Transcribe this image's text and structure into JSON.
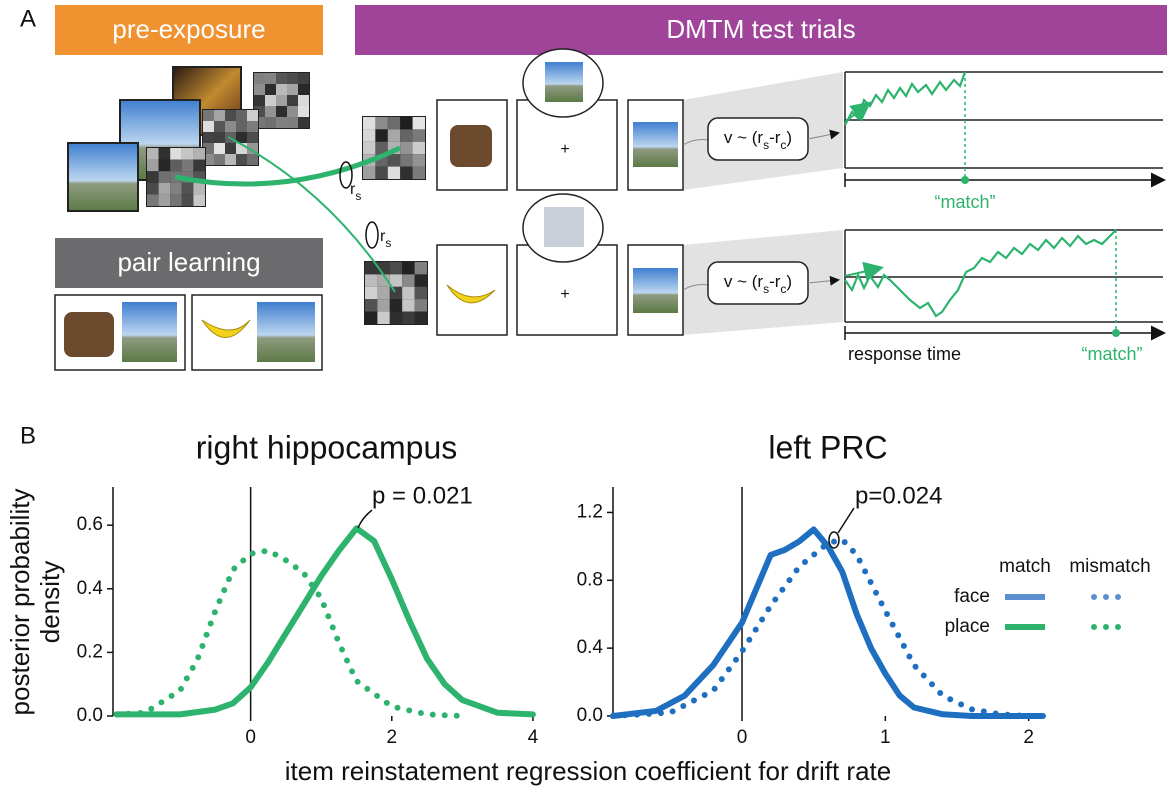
{
  "panel_a": {
    "label": "A",
    "pre_exposure": "pre-exposure",
    "test_trials": "DMTM test trials",
    "pair_learning": "pair learning",
    "similarity_label": {
      "base": "r",
      "sub": "s"
    },
    "drift": [
      "v ~ (r",
      "s",
      "-r",
      "c",
      ")"
    ],
    "response": "“match”",
    "response_time": "response time"
  },
  "panel_b": {
    "label": "B",
    "xlabel": "item reinstatement regression coefficient for drift rate",
    "ylabel": [
      "posterior probability",
      "density"
    ]
  },
  "chart_data": [
    {
      "type": "line",
      "title": "right hippocampus",
      "xlim": [
        -1.95,
        4.1
      ],
      "ylim": [
        0,
        0.72
      ],
      "xticks": [
        0,
        2,
        4
      ],
      "yticks": [
        {
          "value": 0,
          "label": "0.0"
        },
        0.2,
        0.4,
        0.6
      ],
      "zero_line": true,
      "annotation": "p = 0.021",
      "series": [
        {
          "color": "#2db36d",
          "dash": false,
          "x": [
            -1.9,
            -1.5,
            -1,
            -0.5,
            -0.25,
            0,
            0.25,
            0.5,
            0.75,
            1,
            1.25,
            1.5,
            1.75,
            2,
            2.25,
            2.5,
            2.75,
            3,
            3.5,
            4
          ],
          "values": [
            0.005,
            0.005,
            0.005,
            0.02,
            0.04,
            0.09,
            0.17,
            0.26,
            0.35,
            0.44,
            0.52,
            0.59,
            0.55,
            0.43,
            0.3,
            0.18,
            0.1,
            0.05,
            0.01,
            0.005
          ]
        },
        {
          "color": "#2db36d",
          "dash": true,
          "x": [
            -1.9,
            -1.5,
            -1,
            -0.75,
            -0.5,
            -0.25,
            0,
            0.25,
            0.5,
            0.75,
            1,
            1.25,
            1.5,
            2,
            2.5,
            3
          ],
          "values": [
            0.005,
            0.01,
            0.08,
            0.18,
            0.33,
            0.46,
            0.51,
            0.52,
            0.49,
            0.45,
            0.37,
            0.23,
            0.11,
            0.03,
            0.005,
            0
          ]
        }
      ]
    },
    {
      "type": "line",
      "title": "left PRC",
      "xlim": [
        -0.9,
        2.1
      ],
      "ylim": [
        0,
        1.35
      ],
      "xticks": [
        0,
        1,
        2
      ],
      "yticks": [
        {
          "value": 0,
          "label": "0.0"
        },
        0.4,
        0.8,
        1.2
      ],
      "zero_line": true,
      "annotation": "p=0.024",
      "series": [
        {
          "color": "#1f6fc0",
          "dash": false,
          "x": [
            -0.9,
            -0.6,
            -0.4,
            -0.2,
            0,
            0.1,
            0.2,
            0.3,
            0.4,
            0.5,
            0.6,
            0.7,
            0.8,
            0.9,
            1,
            1.1,
            1.2,
            1.4,
            1.6,
            2.1
          ],
          "values": [
            0,
            0.03,
            0.12,
            0.3,
            0.55,
            0.75,
            0.95,
            0.98,
            1.03,
            1.1,
            1.0,
            0.85,
            0.6,
            0.4,
            0.25,
            0.12,
            0.05,
            0.01,
            0,
            0
          ]
        },
        {
          "color": "#1f6fc0",
          "dash": true,
          "x": [
            -0.9,
            -0.5,
            -0.2,
            0,
            0.2,
            0.4,
            0.6,
            0.7,
            0.8,
            1,
            1.2,
            1.4,
            1.6,
            1.8,
            2
          ],
          "values": [
            0,
            0.02,
            0.15,
            0.38,
            0.65,
            0.88,
            1.02,
            1.04,
            0.95,
            0.62,
            0.3,
            0.12,
            0.04,
            0.01,
            0
          ]
        }
      ],
      "legend": {
        "columns": [
          "match",
          "mismatch"
        ],
        "rows": [
          "face",
          "place"
        ],
        "colors": [
          "#5b8fd0",
          "#2db36d"
        ]
      }
    }
  ]
}
